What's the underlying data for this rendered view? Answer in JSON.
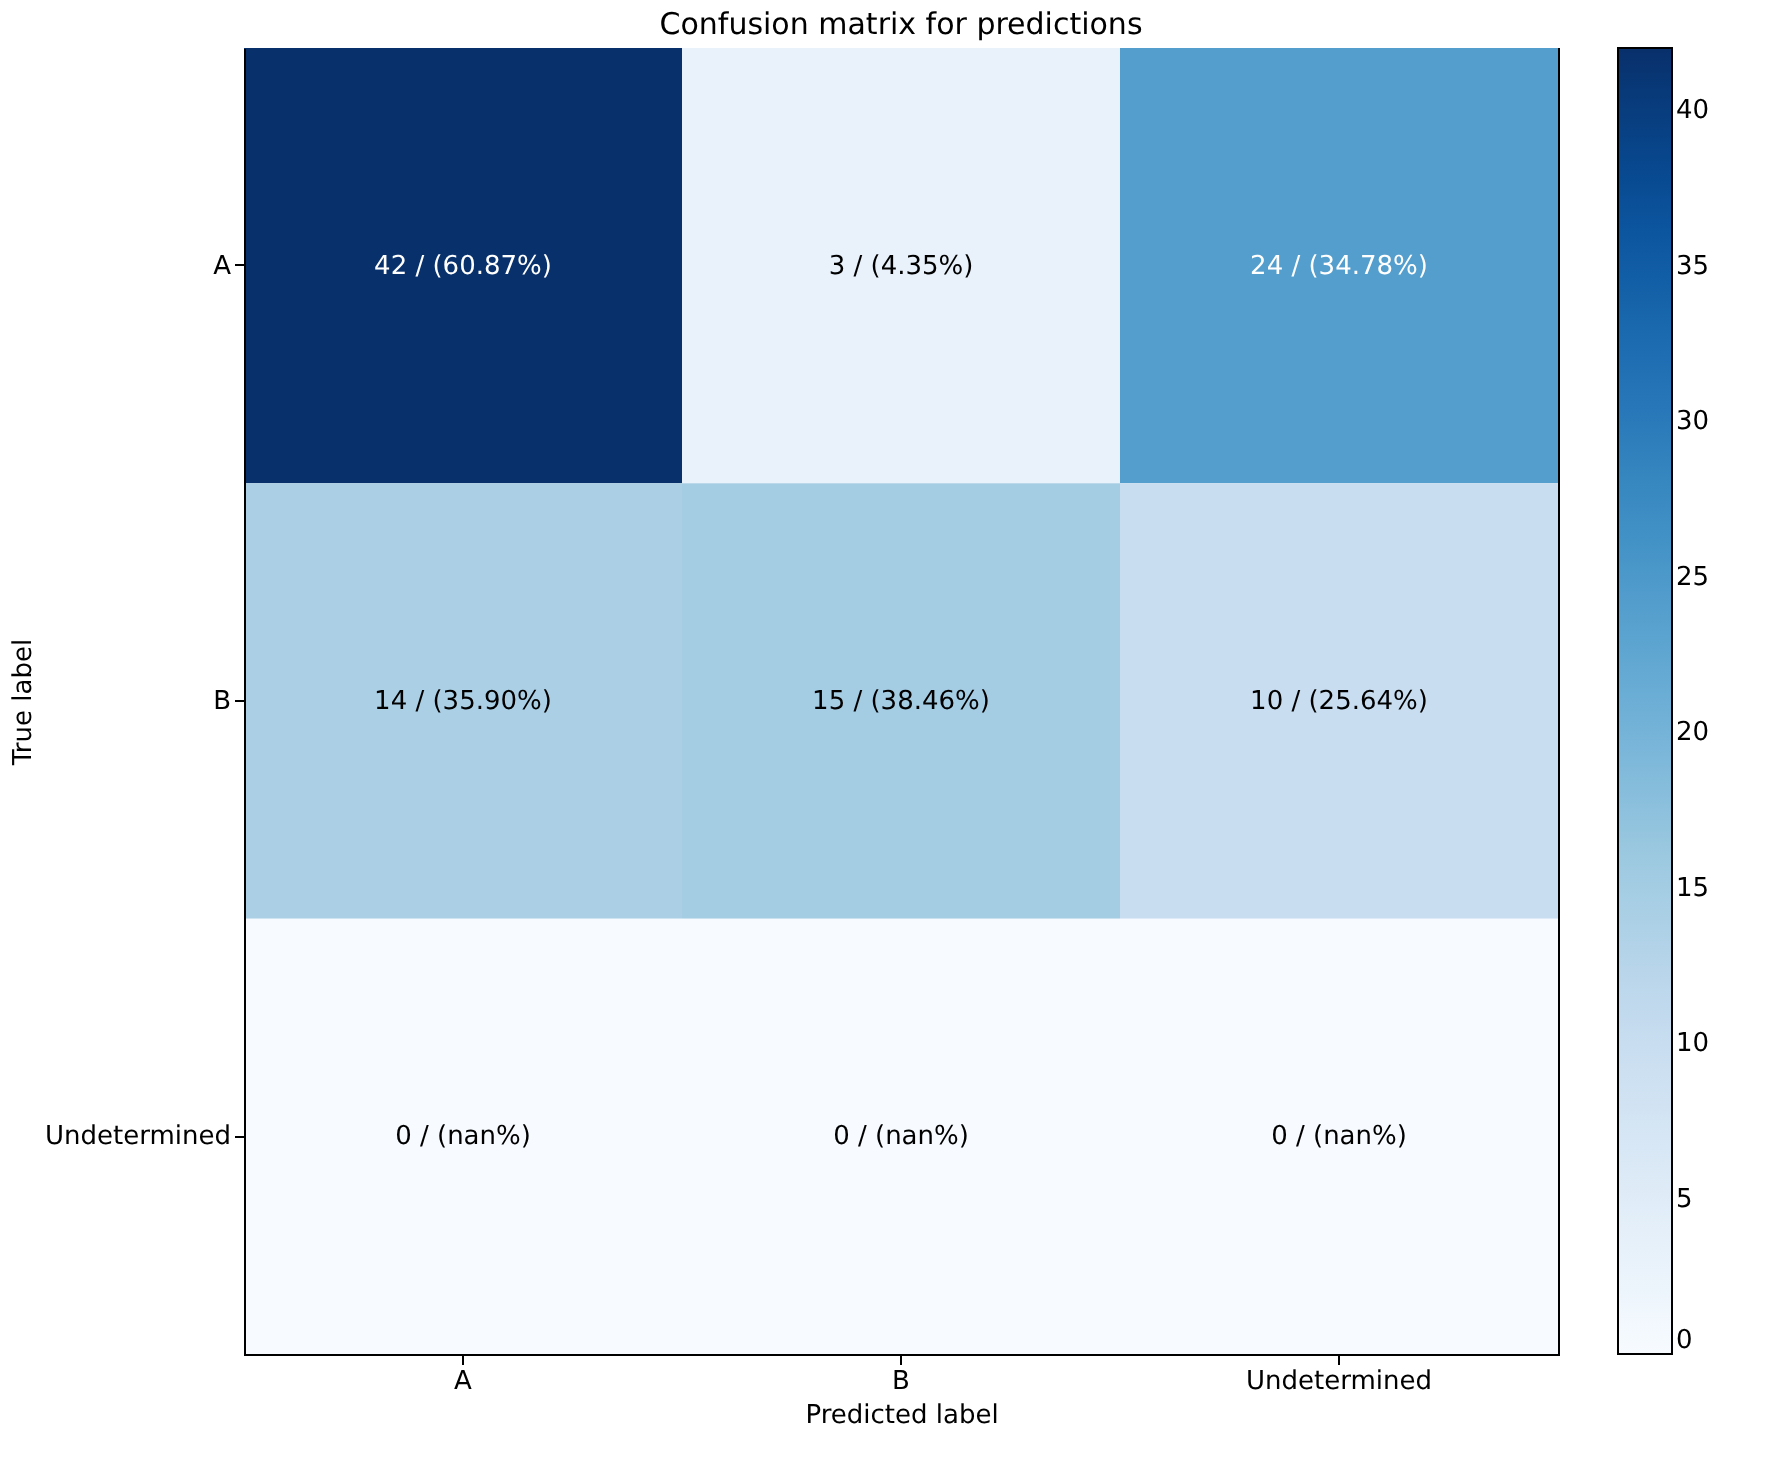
{
  "chart_data": {
    "type": "heatmap",
    "title": "Confusion matrix for predictions",
    "xlabel": "Predicted label",
    "ylabel": "True label",
    "categories": [
      "A",
      "B",
      "Undetermined"
    ],
    "y_categories": [
      "A",
      "B",
      "Undetermined"
    ],
    "cells": [
      [
        42,
        3,
        24
      ],
      [
        14,
        15,
        10
      ],
      [
        0,
        0,
        0
      ]
    ],
    "cell_labels": [
      [
        "42 / (60.87%)",
        "3 / (4.35%)",
        "24 / (34.78%)"
      ],
      [
        "14 / (35.90%)",
        "15 / (38.46%)",
        "10 / (25.64%)"
      ],
      [
        "0 / (nan%)",
        "0 / (nan%)",
        "0 / (nan%)"
      ]
    ],
    "clim": [
      0,
      42
    ],
    "cticks": [
      0,
      5,
      10,
      15,
      20,
      25,
      30,
      35,
      40
    ],
    "grid": false
  }
}
